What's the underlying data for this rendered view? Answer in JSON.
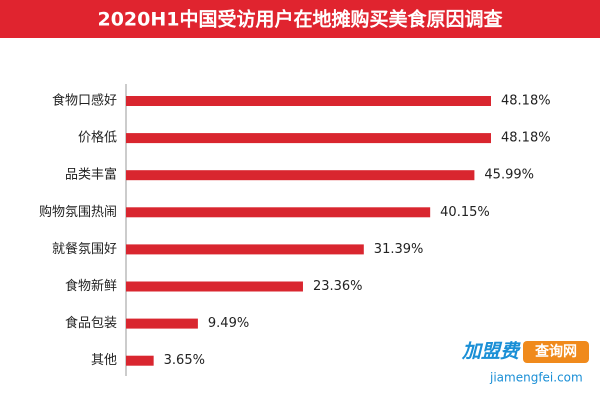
{
  "chart_data": {
    "type": "bar",
    "orientation": "horizontal",
    "title": "2020H1中国受访用户在地摊购买美食原因调查",
    "categories": [
      "食物口感好",
      "价格低",
      "品类丰富",
      "购物氛围热闹",
      "就餐氛围好",
      "食物新鲜",
      "食品包装",
      "其他"
    ],
    "values": [
      48.18,
      48.18,
      45.99,
      40.15,
      31.39,
      23.36,
      9.49,
      3.65
    ],
    "value_labels": [
      "48.18%",
      "48.18%",
      "45.99%",
      "40.15%",
      "31.39%",
      "23.36%",
      "9.49%",
      "3.65%"
    ],
    "color": "#d9262f"
  },
  "watermark": {
    "brand": "加盟费",
    "badge": "查询网",
    "site": "jiamengfei.com"
  }
}
